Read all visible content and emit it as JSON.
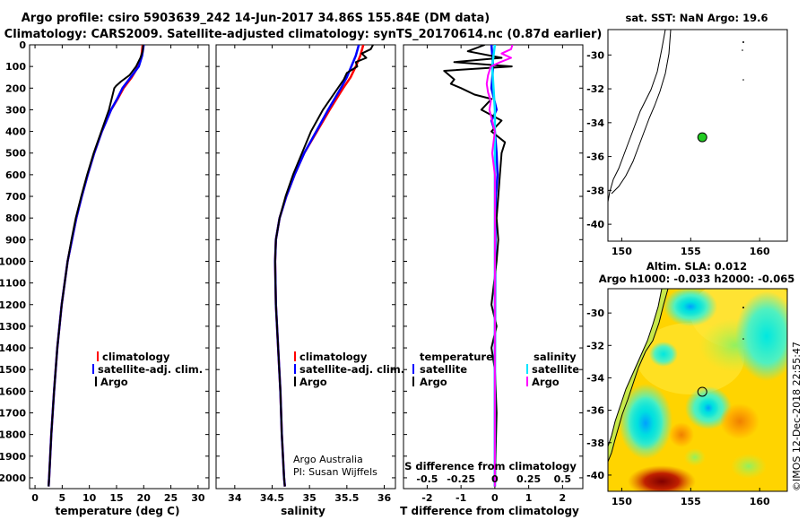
{
  "title_line1": "Argo profile: csiro 5903639_242 14-Jun-2017 34.86S 155.84E (DM data)",
  "title_line2": "Climatology: CARS2009. Satellite-adjusted climatology: synTS_20170614.nc (0.87d earlier)",
  "credit_line1": "Argo Australia",
  "credit_line2": "PI: Susan Wijffels",
  "stamp": "©IMOS 12-Dec-2018 22:55:47",
  "colors": {
    "climatology": "#ff0000",
    "satellite": "#0000ff",
    "argo": "#000000",
    "sat_salinity": "#00e5ff",
    "argo_salinity": "#ff00ff"
  },
  "chart_data": [
    {
      "type": "line",
      "name": "temperature-profile",
      "xlabel": "temperature (deg C)",
      "xlim": [
        -1,
        32
      ],
      "xticks": [
        0,
        5,
        10,
        15,
        20,
        25,
        30
      ],
      "ylim": [
        2050,
        0
      ],
      "yticks": [
        0,
        100,
        200,
        300,
        400,
        500,
        600,
        700,
        800,
        900,
        1000,
        1100,
        1200,
        1300,
        1400,
        1500,
        1600,
        1700,
        1800,
        1900,
        2000
      ],
      "legend": [
        "climatology",
        "satellite-adj. clim.",
        "Argo"
      ],
      "series": [
        {
          "name": "climatology",
          "depth": [
            0,
            50,
            100,
            150,
            200,
            250,
            300,
            400,
            500,
            600,
            700,
            800,
            900,
            1000,
            1200,
            1400,
            1600,
            1800,
            2000,
            2040
          ],
          "value": [
            19.8,
            19.6,
            19.0,
            17.8,
            16.3,
            15.2,
            14.0,
            12.3,
            10.9,
            9.7,
            8.6,
            7.6,
            6.8,
            6.0,
            4.9,
            4.1,
            3.5,
            3.0,
            2.6,
            2.5
          ]
        },
        {
          "name": "satellite-adj. clim.",
          "depth": [
            0,
            50,
            100,
            150,
            200,
            250,
            300,
            400,
            500,
            600,
            700,
            800,
            900,
            1000,
            1200,
            1400,
            1600,
            1800,
            2000,
            2040
          ],
          "value": [
            20.0,
            19.7,
            19.1,
            17.6,
            16.1,
            15.1,
            14.0,
            12.3,
            10.9,
            9.7,
            8.6,
            7.6,
            6.8,
            6.0,
            4.9,
            4.1,
            3.5,
            3.0,
            2.6,
            2.5
          ]
        },
        {
          "name": "Argo",
          "depth": [
            0,
            30,
            60,
            100,
            140,
            170,
            190,
            200,
            230,
            260,
            300,
            400,
            500,
            600,
            700,
            800,
            900,
            1000,
            1200,
            1400,
            1600,
            1800,
            2000,
            2040
          ],
          "value": [
            19.9,
            19.8,
            19.4,
            18.6,
            17.4,
            15.8,
            14.9,
            14.6,
            14.3,
            14.0,
            13.6,
            12.2,
            10.8,
            9.6,
            8.5,
            7.5,
            6.7,
            6.0,
            4.9,
            4.1,
            3.5,
            3.0,
            2.6,
            2.5
          ]
        }
      ]
    },
    {
      "type": "line",
      "name": "salinity-profile",
      "xlabel": "salinity",
      "xlim": [
        33.75,
        36.15
      ],
      "xticks": [
        34,
        34.5,
        35,
        35.5,
        36
      ],
      "ylim": [
        2050,
        0
      ],
      "legend": [
        "climatology",
        "satellite-adj. clim.",
        "Argo"
      ],
      "series": [
        {
          "name": "climatology",
          "depth": [
            0,
            50,
            100,
            150,
            200,
            300,
            400,
            500,
            600,
            700,
            800,
            900,
            1000,
            1200,
            1400,
            1600,
            1800,
            2000,
            2040
          ],
          "value": [
            35.72,
            35.68,
            35.62,
            35.55,
            35.45,
            35.27,
            35.1,
            34.93,
            34.8,
            34.69,
            34.6,
            34.55,
            34.54,
            34.55,
            34.58,
            34.61,
            34.63,
            34.66,
            34.67
          ]
        },
        {
          "name": "satellite-adj. clim.",
          "depth": [
            0,
            50,
            100,
            150,
            200,
            300,
            400,
            500,
            600,
            700,
            800,
            900,
            1000,
            1200,
            1400,
            1600,
            1800,
            2000,
            2040
          ],
          "value": [
            35.66,
            35.62,
            35.56,
            35.5,
            35.42,
            35.25,
            35.09,
            34.93,
            34.8,
            34.69,
            34.6,
            34.55,
            34.54,
            34.55,
            34.58,
            34.61,
            34.63,
            34.66,
            34.67
          ]
        },
        {
          "name": "Argo",
          "depth": [
            0,
            20,
            40,
            60,
            80,
            100,
            130,
            160,
            200,
            260,
            300,
            400,
            500,
            600,
            700,
            800,
            900,
            1000,
            1200,
            1400,
            1600,
            1800,
            2000,
            2040
          ],
          "value": [
            35.85,
            35.82,
            35.7,
            35.76,
            35.62,
            35.64,
            35.5,
            35.46,
            35.38,
            35.26,
            35.18,
            35.02,
            34.9,
            34.78,
            34.68,
            34.6,
            34.55,
            34.54,
            34.55,
            34.58,
            34.61,
            34.63,
            34.66,
            34.67
          ]
        }
      ]
    },
    {
      "type": "line",
      "name": "difference-profile",
      "xlabel": "T difference from climatology",
      "xlim": [
        -2.7,
        2.6
      ],
      "xticks": [
        -2,
        -1,
        0,
        1,
        2
      ],
      "top_label": "S difference from climatology",
      "top_tick_labels": [
        "-0.5",
        "-0.25",
        "0",
        "0.25",
        "0.5"
      ],
      "ylim": [
        2050,
        0
      ],
      "legend_left_title": "temperature",
      "legend_right_title": "salinity",
      "legend": [
        "satellite",
        "Argo",
        "satellite",
        "Argo"
      ],
      "series": [
        {
          "name": "temperature satellite",
          "depth": [
            0,
            100,
            200,
            300,
            350,
            400,
            500,
            600,
            700,
            800,
            1000,
            1500,
            2000,
            2040
          ],
          "value": [
            -0.1,
            -0.05,
            -0.1,
            0.05,
            -0.1,
            0.0,
            0.05,
            0.08,
            0.03,
            0.02,
            0.01,
            0.0,
            0.0,
            0.0
          ]
        },
        {
          "name": "temperature Argo",
          "depth": [
            0,
            30,
            60,
            80,
            100,
            120,
            160,
            180,
            200,
            230,
            250,
            300,
            350,
            400,
            450,
            500,
            600,
            700,
            800,
            900,
            1000,
            1200,
            1300,
            1400,
            1500,
            1700,
            1900,
            2040
          ],
          "value": [
            -0.3,
            -0.8,
            0.2,
            -1.2,
            0.5,
            -1.5,
            -1.2,
            -1.3,
            -1.0,
            -0.6,
            -0.1,
            -0.4,
            0.2,
            -0.1,
            0.3,
            0.2,
            0.15,
            0.1,
            0.05,
            0.1,
            0.05,
            -0.1,
            0.05,
            -0.1,
            0.0,
            0.05,
            0.02,
            0.0
          ]
        },
        {
          "name": "salinity satellite",
          "depth": [
            0,
            100,
            200,
            300,
            400,
            500,
            600,
            800,
            1000,
            1500,
            2000,
            2040
          ],
          "value": [
            0.0,
            -0.02,
            -0.01,
            0.0,
            0.0,
            0.0,
            0.0,
            0.0,
            0.0,
            0.0,
            0.0,
            0.0
          ]
        },
        {
          "name": "salinity Argo",
          "depth": [
            0,
            20,
            40,
            60,
            80,
            100,
            140,
            180,
            220,
            260,
            300,
            400,
            500,
            600,
            700,
            800,
            1000,
            1500,
            2000,
            2040
          ],
          "value": [
            0.13,
            0.12,
            0.05,
            0.12,
            0.04,
            -0.03,
            -0.05,
            -0.06,
            -0.05,
            -0.03,
            -0.04,
            0.0,
            -0.02,
            0.0,
            0.0,
            0.0,
            0.0,
            0.0,
            0.0,
            0.0
          ]
        }
      ]
    },
    {
      "type": "scatter",
      "name": "sst-map",
      "title": "sat. SST: NaN Argo: 19.6",
      "xlim": [
        149,
        162
      ],
      "ylim": [
        -41,
        -28.5
      ],
      "xticks": [
        150,
        155,
        160
      ],
      "yticks": [
        -30,
        -32,
        -34,
        -36,
        -38,
        -40
      ],
      "float_position": {
        "lon": 155.84,
        "lat": -34.86
      }
    },
    {
      "type": "heatmap",
      "name": "sla-map",
      "title_line1": "Altim. SLA: 0.012",
      "title_line2": "Argo h1000: -0.033 h2000: -0.065",
      "xlim": [
        149,
        162
      ],
      "ylim": [
        -41,
        -28.5
      ],
      "xticks": [
        150,
        155,
        160
      ],
      "yticks": [
        -30,
        -32,
        -34,
        -36,
        -38,
        -40
      ],
      "float_position": {
        "lon": 155.84,
        "lat": -34.86
      }
    }
  ]
}
